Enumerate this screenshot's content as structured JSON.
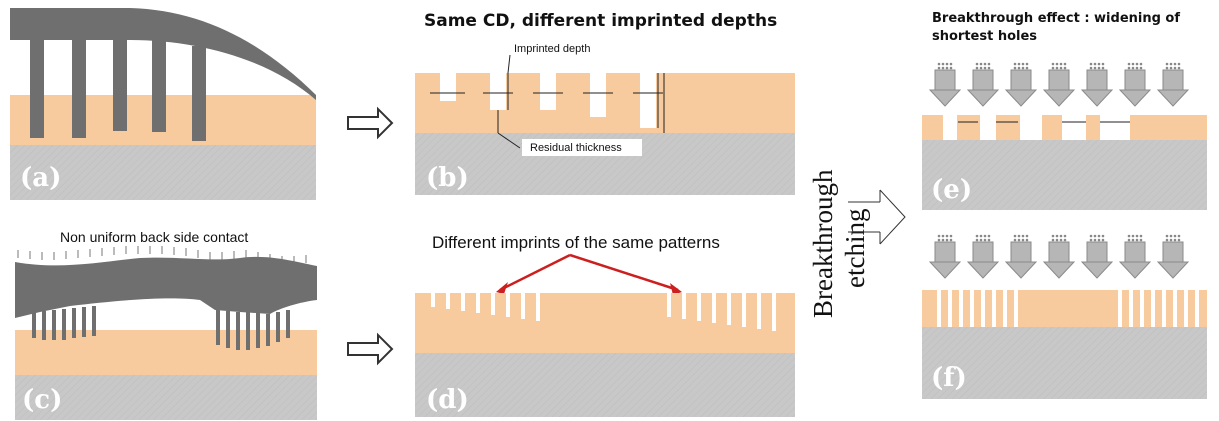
{
  "colors": {
    "substrate": "#c8c8c8",
    "resist": "#f8cb9e",
    "mold": "#6f6f6f",
    "arrow_fill": "#b6b6b6",
    "red_arrow": "#cc1f1f",
    "white": "#ffffff"
  },
  "panels": {
    "a": {
      "label": "(a)"
    },
    "b": {
      "label": "(b)",
      "title": "Same CD, different imprinted depths",
      "annotation_depth": "Imprinted depth",
      "annotation_residual": "Residual thickness"
    },
    "c": {
      "label": "(c)",
      "annotation": "Non uniform back side contact"
    },
    "d": {
      "label": "(d)",
      "annotation": "Different imprints of the same patterns"
    },
    "e": {
      "label": "(e)",
      "title_line1": "Breakthrough effect : widening of",
      "title_line2": "shortest holes"
    },
    "f": {
      "label": "(f)"
    }
  },
  "process_text": {
    "line1": "Breakthrough",
    "line2": "etching"
  },
  "icons": [
    "hollow-right-arrow-icon",
    "etch-arrow-icon",
    "red-pointer-arrow-icon"
  ]
}
